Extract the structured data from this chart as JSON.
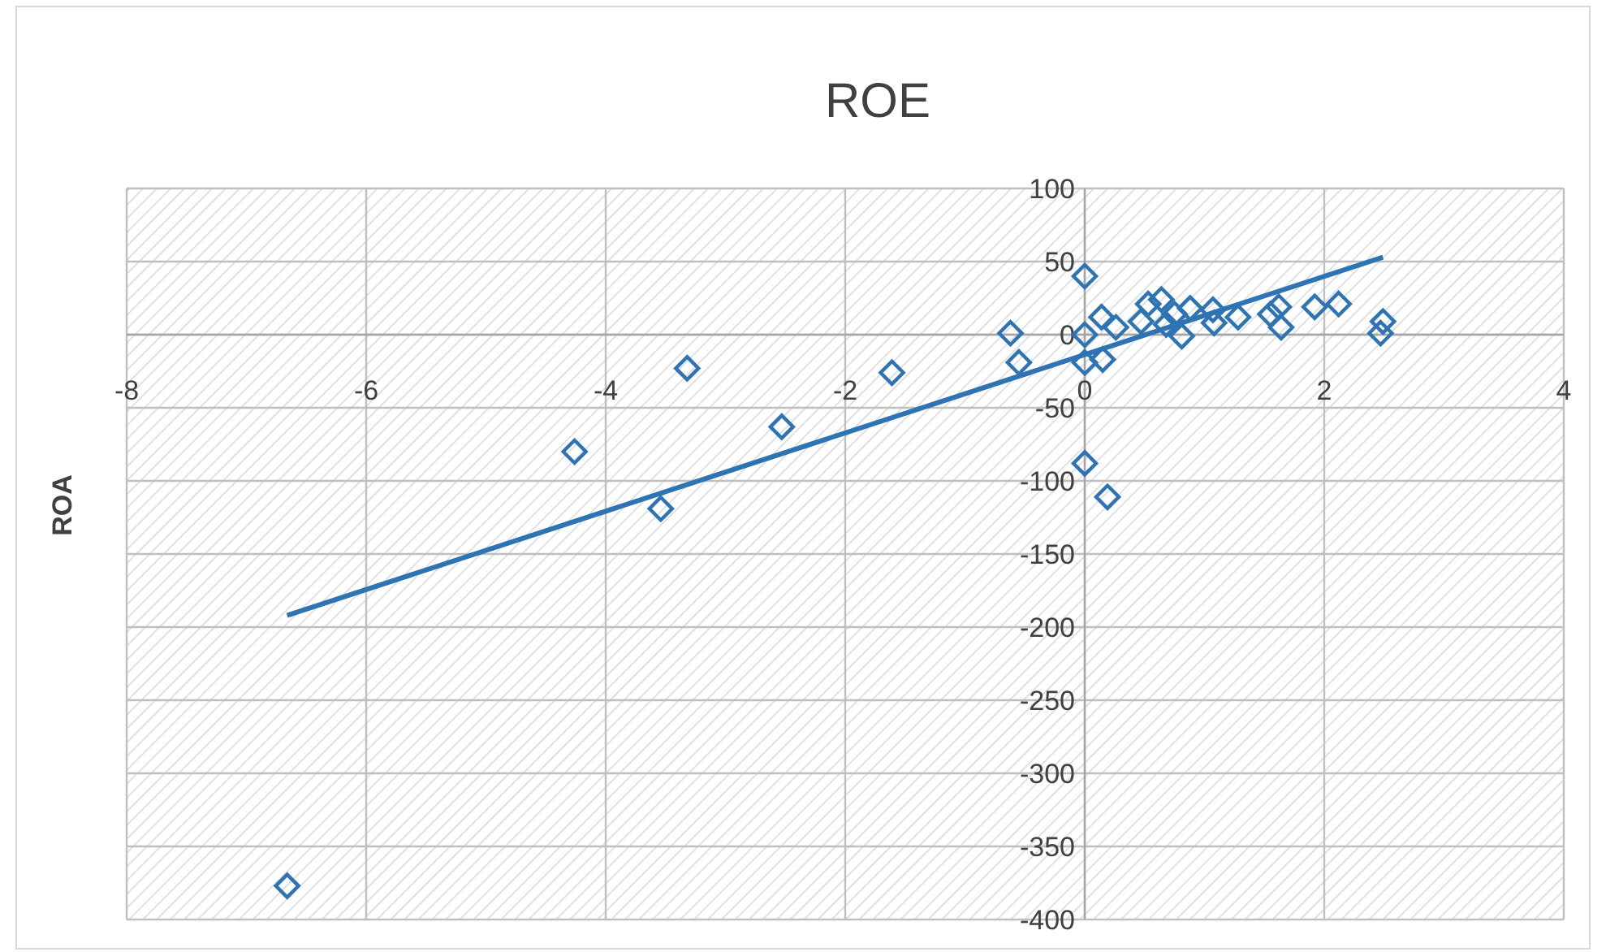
{
  "chart_data": {
    "type": "scatter",
    "title": "ROE",
    "ylabel": "ROA",
    "xlim": [
      -8,
      4
    ],
    "xticks": [
      -8,
      -6,
      -4,
      -2,
      0,
      2,
      4
    ],
    "ylim": [
      -400,
      100
    ],
    "yticks": [
      -400,
      -350,
      -300,
      -250,
      -200,
      -150,
      -100,
      -50,
      0,
      50,
      100
    ],
    "grid": true,
    "series": [
      {
        "marker": "diamond",
        "color": "#2e74b5",
        "x": [
          -6.66,
          -4.26,
          -3.54,
          -3.32,
          -2.53,
          -1.61,
          -0.62,
          -0.55,
          0,
          0,
          0.19,
          0,
          0.14,
          0.26,
          0.15,
          0,
          0.47,
          0.53,
          0.64,
          0.68,
          0.75,
          0.88,
          0.81,
          1.07,
          1.08,
          1.28,
          1.55,
          1.62,
          1.64,
          1.92,
          2.12,
          2.49,
          2.47
        ],
        "values": [
          -377,
          -80,
          -119,
          -23,
          -63,
          -26,
          1,
          -19,
          40,
          -88,
          -111,
          0,
          12,
          5,
          -17,
          -19,
          9,
          21,
          24,
          7,
          14,
          18,
          -1,
          17,
          8,
          12,
          14,
          19,
          5,
          19,
          21,
          9,
          1
        ]
      },
      {
        "type": "line",
        "marker": "none",
        "line_style": "solid",
        "color": "#2e74b5",
        "x": [
          -6.66,
          2.49
        ],
        "values": [
          -192,
          53
        ]
      }
    ]
  }
}
